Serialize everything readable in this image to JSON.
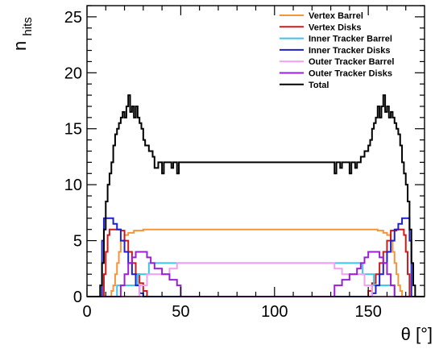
{
  "chart_data": {
    "type": "line",
    "xlabel": "θ [°]",
    "ylabel_main": "n",
    "ylabel_sub": "hits",
    "xlim": [
      0,
      180
    ],
    "ylim": [
      0,
      26
    ],
    "xticks": [
      0,
      50,
      100,
      150
    ],
    "yticks": [
      0,
      5,
      10,
      15,
      20,
      25
    ],
    "grid": false,
    "legend_position": "top-right",
    "series": [
      {
        "name": "Vertex Barrel",
        "color": "#f5953b",
        "points": [
          [
            0,
            0
          ],
          [
            12,
            0
          ],
          [
            13,
            0.5
          ],
          [
            14,
            1
          ],
          [
            15,
            2
          ],
          [
            16,
            3
          ],
          [
            17,
            4
          ],
          [
            18,
            5
          ],
          [
            20,
            5.5
          ],
          [
            22,
            5.7
          ],
          [
            25,
            5.9
          ],
          [
            30,
            6
          ],
          [
            150,
            6
          ],
          [
            155,
            5.9
          ],
          [
            158,
            5.7
          ],
          [
            160,
            5.5
          ],
          [
            162,
            5
          ],
          [
            163,
            4
          ],
          [
            164,
            3
          ],
          [
            165,
            2
          ],
          [
            166,
            1
          ],
          [
            167,
            0.5
          ],
          [
            168,
            0
          ],
          [
            180,
            0
          ]
        ]
      },
      {
        "name": "Vertex Disks",
        "color": "#cc1a1a",
        "points": [
          [
            0,
            0
          ],
          [
            8,
            0
          ],
          [
            9,
            2
          ],
          [
            10,
            4
          ],
          [
            11,
            5.5
          ],
          [
            12,
            6
          ],
          [
            15,
            6
          ],
          [
            18,
            5.9
          ],
          [
            20,
            5
          ],
          [
            22,
            4
          ],
          [
            24,
            3
          ],
          [
            26,
            2
          ],
          [
            28,
            1.2
          ],
          [
            30,
            0.5
          ],
          [
            32,
            0
          ],
          [
            148,
            0
          ],
          [
            150,
            0.5
          ],
          [
            152,
            1.2
          ],
          [
            154,
            2
          ],
          [
            156,
            3
          ],
          [
            158,
            4
          ],
          [
            160,
            5
          ],
          [
            162,
            5.9
          ],
          [
            165,
            6
          ],
          [
            168,
            6
          ],
          [
            169,
            5.5
          ],
          [
            170,
            4
          ],
          [
            171,
            2
          ],
          [
            172,
            0
          ],
          [
            180,
            0
          ]
        ]
      },
      {
        "name": "Inner Tracker Barrel",
        "color": "#3dc4e8",
        "points": [
          [
            0,
            0
          ],
          [
            16,
            0
          ],
          [
            16,
            1
          ],
          [
            27,
            1
          ],
          [
            27,
            2
          ],
          [
            33,
            2
          ],
          [
            33,
            3
          ],
          [
            147,
            3
          ],
          [
            147,
            2
          ],
          [
            153,
            2
          ],
          [
            153,
            1
          ],
          [
            164,
            1
          ],
          [
            164,
            0
          ],
          [
            180,
            0
          ]
        ]
      },
      {
        "name": "Inner Tracker Disks",
        "color": "#1f1fcc",
        "points": [
          [
            0,
            0
          ],
          [
            7,
            0
          ],
          [
            8,
            5
          ],
          [
            9,
            7
          ],
          [
            12,
            7
          ],
          [
            14,
            6.5
          ],
          [
            16,
            6
          ],
          [
            18,
            5
          ],
          [
            20,
            4
          ],
          [
            22,
            3
          ],
          [
            24,
            2
          ],
          [
            26,
            1
          ],
          [
            28,
            0.3
          ],
          [
            30,
            0
          ],
          [
            150,
            0
          ],
          [
            152,
            0.3
          ],
          [
            154,
            1
          ],
          [
            156,
            2
          ],
          [
            158,
            3
          ],
          [
            160,
            4
          ],
          [
            162,
            5
          ],
          [
            164,
            6
          ],
          [
            166,
            6.5
          ],
          [
            168,
            7
          ],
          [
            171,
            7
          ],
          [
            172,
            5
          ],
          [
            173,
            0
          ],
          [
            180,
            0
          ]
        ]
      },
      {
        "name": "Outer Tracker Barrel",
        "color": "#f29ef2",
        "points": [
          [
            0,
            0
          ],
          [
            28,
            0
          ],
          [
            28,
            1
          ],
          [
            32,
            1
          ],
          [
            32,
            2
          ],
          [
            44,
            2
          ],
          [
            44,
            2.5
          ],
          [
            48,
            2.5
          ],
          [
            48,
            3
          ],
          [
            132,
            3
          ],
          [
            132,
            2.5
          ],
          [
            136,
            2.5
          ],
          [
            136,
            2
          ],
          [
            148,
            2
          ],
          [
            148,
            1
          ],
          [
            152,
            1
          ],
          [
            152,
            0
          ],
          [
            180,
            0
          ]
        ]
      },
      {
        "name": "Outer Tracker Disks",
        "color": "#9a1fd6",
        "points": [
          [
            0,
            0
          ],
          [
            16,
            0
          ],
          [
            18,
            1
          ],
          [
            20,
            2
          ],
          [
            22,
            3
          ],
          [
            24,
            3.5
          ],
          [
            26,
            4
          ],
          [
            30,
            4
          ],
          [
            32,
            3.5
          ],
          [
            34,
            3
          ],
          [
            36,
            2.5
          ],
          [
            40,
            2
          ],
          [
            44,
            1.5
          ],
          [
            48,
            1
          ],
          [
            50,
            0
          ],
          [
            130,
            0
          ],
          [
            132,
            1
          ],
          [
            136,
            1.5
          ],
          [
            140,
            2
          ],
          [
            144,
            2.5
          ],
          [
            146,
            3
          ],
          [
            148,
            3.5
          ],
          [
            150,
            4
          ],
          [
            154,
            4
          ],
          [
            156,
            3.5
          ],
          [
            158,
            3
          ],
          [
            160,
            2
          ],
          [
            162,
            1
          ],
          [
            164,
            0
          ],
          [
            180,
            0
          ]
        ]
      },
      {
        "name": "Total",
        "color": "#000000",
        "points": [
          [
            0,
            0
          ],
          [
            5,
            0
          ],
          [
            7,
            1
          ],
          [
            8,
            3
          ],
          [
            9,
            6
          ],
          [
            10,
            8.5
          ],
          [
            11,
            10
          ],
          [
            12,
            11
          ],
          [
            13,
            12
          ],
          [
            14,
            13.5
          ],
          [
            15,
            14.5
          ],
          [
            16,
            15
          ],
          [
            17,
            15.5
          ],
          [
            18,
            16
          ],
          [
            19,
            16.5
          ],
          [
            20,
            16
          ],
          [
            21,
            17
          ],
          [
            22,
            18
          ],
          [
            23,
            16.5
          ],
          [
            24,
            17
          ],
          [
            25,
            16
          ],
          [
            26,
            17
          ],
          [
            27,
            16
          ],
          [
            28,
            15.5
          ],
          [
            29,
            15
          ],
          [
            30,
            14
          ],
          [
            31,
            13.5
          ],
          [
            33,
            13
          ],
          [
            35,
            12.5
          ],
          [
            36,
            11.5
          ],
          [
            38,
            12
          ],
          [
            40,
            11
          ],
          [
            41,
            12
          ],
          [
            45,
            11.5
          ],
          [
            46,
            12
          ],
          [
            48,
            11
          ],
          [
            49,
            12
          ],
          [
            130,
            12
          ],
          [
            132,
            11
          ],
          [
            133,
            12
          ],
          [
            135,
            11.5
          ],
          [
            136,
            12
          ],
          [
            140,
            11
          ],
          [
            141,
            12
          ],
          [
            143,
            11.5
          ],
          [
            144,
            12
          ],
          [
            146,
            12.5
          ],
          [
            148,
            13
          ],
          [
            150,
            13.5
          ],
          [
            151,
            14
          ],
          [
            152,
            15
          ],
          [
            153,
            15.5
          ],
          [
            154,
            16
          ],
          [
            155,
            17
          ],
          [
            156,
            16
          ],
          [
            157,
            17
          ],
          [
            158,
            18
          ],
          [
            159,
            16.5
          ],
          [
            160,
            17
          ],
          [
            161,
            16
          ],
          [
            162,
            16.5
          ],
          [
            163,
            16
          ],
          [
            164,
            15.5
          ],
          [
            165,
            15
          ],
          [
            166,
            14.5
          ],
          [
            167,
            13.5
          ],
          [
            168,
            12
          ],
          [
            169,
            11
          ],
          [
            170,
            10
          ],
          [
            171,
            8.5
          ],
          [
            172,
            6
          ],
          [
            173,
            3
          ],
          [
            174,
            1
          ],
          [
            175,
            0
          ],
          [
            180,
            0
          ]
        ]
      }
    ]
  }
}
